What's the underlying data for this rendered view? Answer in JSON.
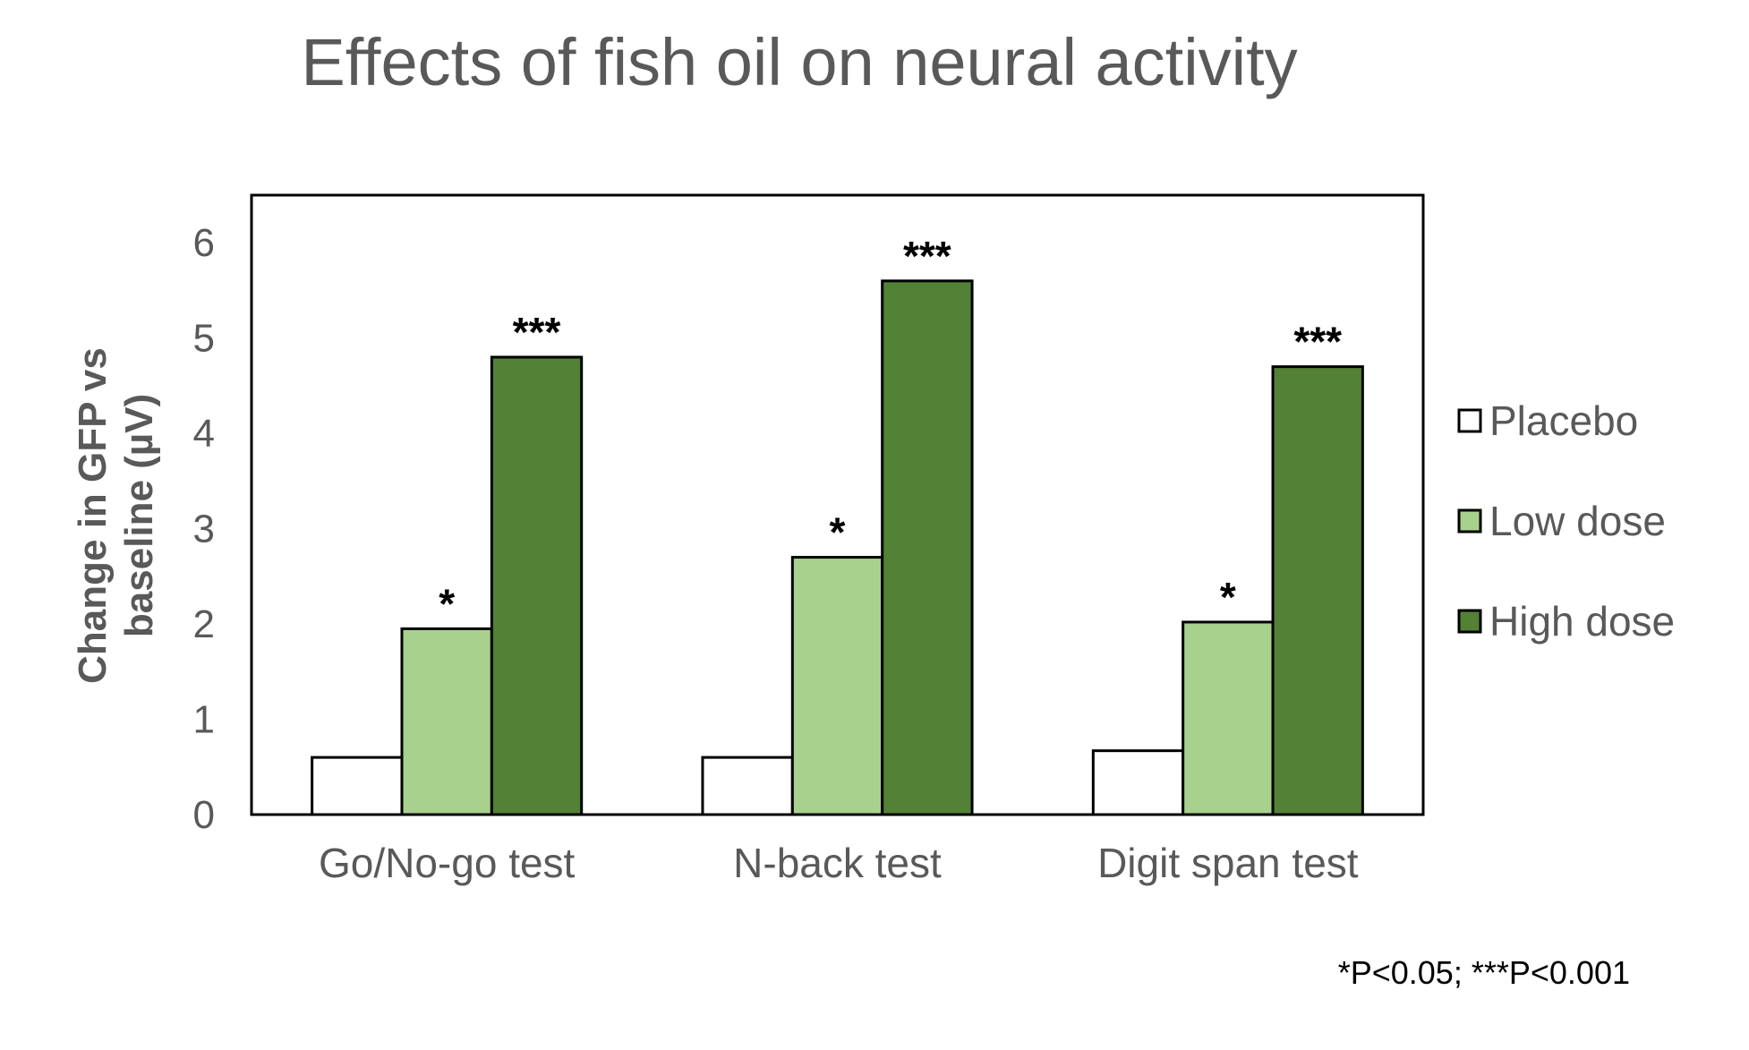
{
  "chart_data": {
    "type": "bar",
    "title": "Effects of fish oil on neural activity",
    "ylabel_lines": [
      "Change in GFP vs",
      "baseline (µV)"
    ],
    "xlabel": "",
    "categories": [
      "Go/No-go test",
      "N-back test",
      "Digit span test"
    ],
    "ylim": [
      0,
      6.5
    ],
    "yticks": [
      0,
      1,
      2,
      3,
      4,
      5,
      6
    ],
    "grid": false,
    "legend_position": "right",
    "series": [
      {
        "name": "Placebo",
        "color": "#ffffff",
        "values": [
          0.6,
          0.6,
          0.67
        ],
        "annotations": [
          "",
          "",
          ""
        ]
      },
      {
        "name": "Low dose",
        "color": "#a9d18e",
        "values": [
          1.95,
          2.7,
          2.02
        ],
        "annotations": [
          "*",
          "*",
          "*"
        ]
      },
      {
        "name": "High dose",
        "color": "#538135",
        "values": [
          4.8,
          5.6,
          4.7
        ],
        "annotations": [
          "***",
          "***",
          "***"
        ]
      }
    ],
    "footnote": "*P<0.05; ***P<0.001"
  }
}
